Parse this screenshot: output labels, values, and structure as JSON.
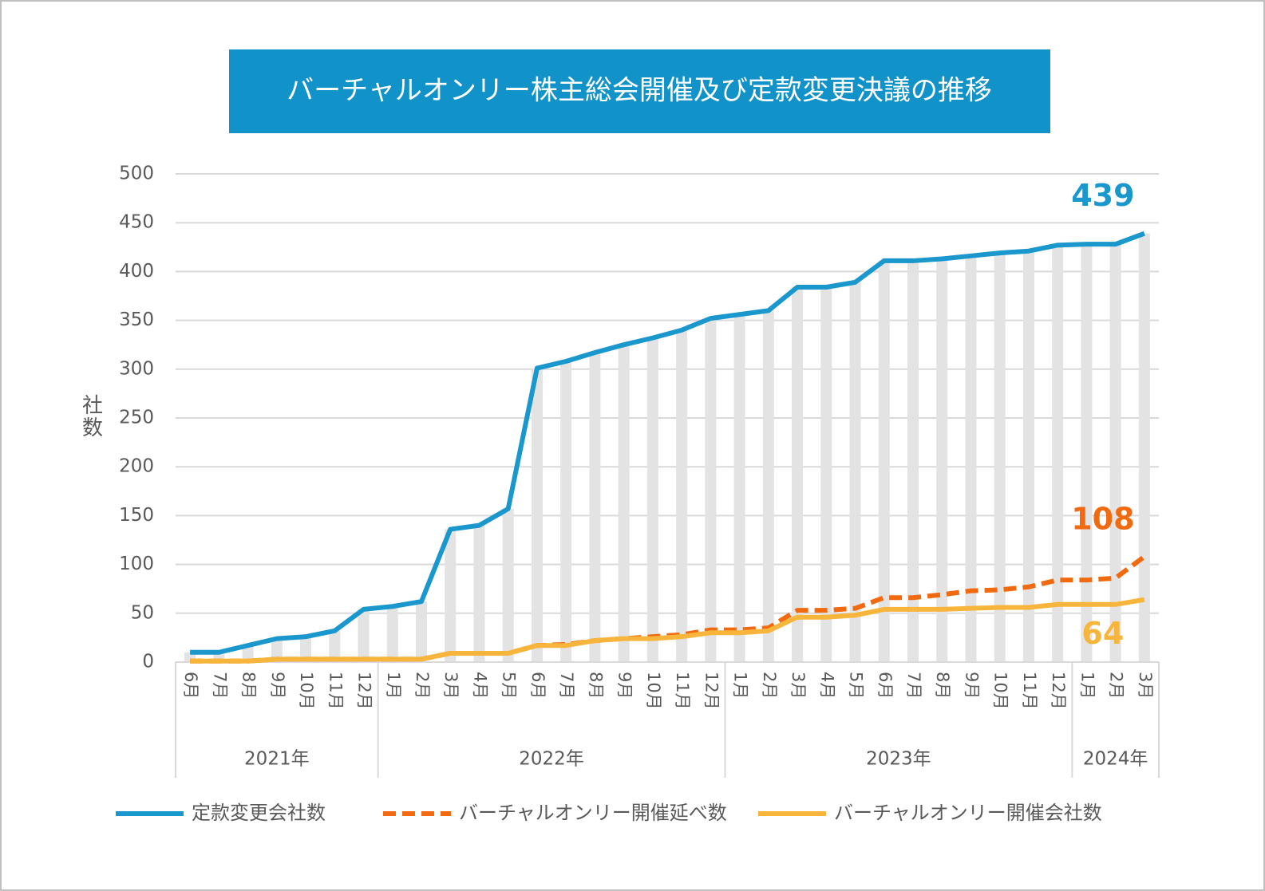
{
  "chart_data": {
    "type": "line",
    "title": "バーチャルオンリー株主総会開催及び定款変更決議の推移",
    "y_label": "社数",
    "groups": [
      {
        "label": "2021年",
        "categories": [
          "6月",
          "7月",
          "8月",
          "9月",
          "10月",
          "11月",
          "12月"
        ]
      },
      {
        "label": "2022年",
        "categories": [
          "1月",
          "2月",
          "3月",
          "4月",
          "5月",
          "6月",
          "7月",
          "8月",
          "9月",
          "10月",
          "11月",
          "12月"
        ]
      },
      {
        "label": "2023年",
        "categories": [
          "1月",
          "2月",
          "3月",
          "4月",
          "5月",
          "6月",
          "7月",
          "8月",
          "9月",
          "10月",
          "11月",
          "12月"
        ]
      },
      {
        "label": "2024年",
        "categories": [
          "1月",
          "2月",
          "3月"
        ]
      }
    ],
    "series": [
      {
        "name": "定款変更会社数",
        "color": "#1a97cc",
        "dashed": false,
        "drop_bars": true,
        "values": [
          10,
          10,
          17,
          24,
          26,
          32,
          54,
          57,
          62,
          136,
          140,
          157,
          301,
          308,
          317,
          325,
          332,
          340,
          352,
          356,
          360,
          384,
          384,
          389,
          411,
          411,
          413,
          416,
          419,
          421,
          427,
          428,
          428,
          439
        ]
      },
      {
        "name": "バーチャルオンリー開催延べ数",
        "color": "#f26a10",
        "dashed": true,
        "drop_bars": false,
        "values": [
          1,
          1,
          1,
          3,
          3,
          3,
          3,
          3,
          3,
          9,
          9,
          9,
          17,
          18,
          22,
          24,
          26,
          28,
          33,
          33,
          35,
          53,
          53,
          55,
          66,
          66,
          69,
          73,
          74,
          77,
          84,
          84,
          86,
          108
        ]
      },
      {
        "name": "バーチャルオンリー開催会社数",
        "color": "#f7b53b",
        "dashed": false,
        "drop_bars": false,
        "values": [
          1,
          1,
          1,
          3,
          3,
          3,
          3,
          3,
          3,
          9,
          9,
          9,
          17,
          17,
          22,
          24,
          24,
          26,
          30,
          30,
          32,
          46,
          46,
          48,
          54,
          54,
          54,
          55,
          56,
          56,
          59,
          59,
          59,
          64
        ]
      }
    ],
    "drop_bar_color": "#e3e3e3",
    "title_color": "#1192c9",
    "ylim": [
      0,
      500
    ],
    "yticks": [
      0,
      50,
      100,
      150,
      200,
      250,
      300,
      350,
      400,
      450,
      500
    ],
    "grid": true,
    "legend": "bottom"
  }
}
